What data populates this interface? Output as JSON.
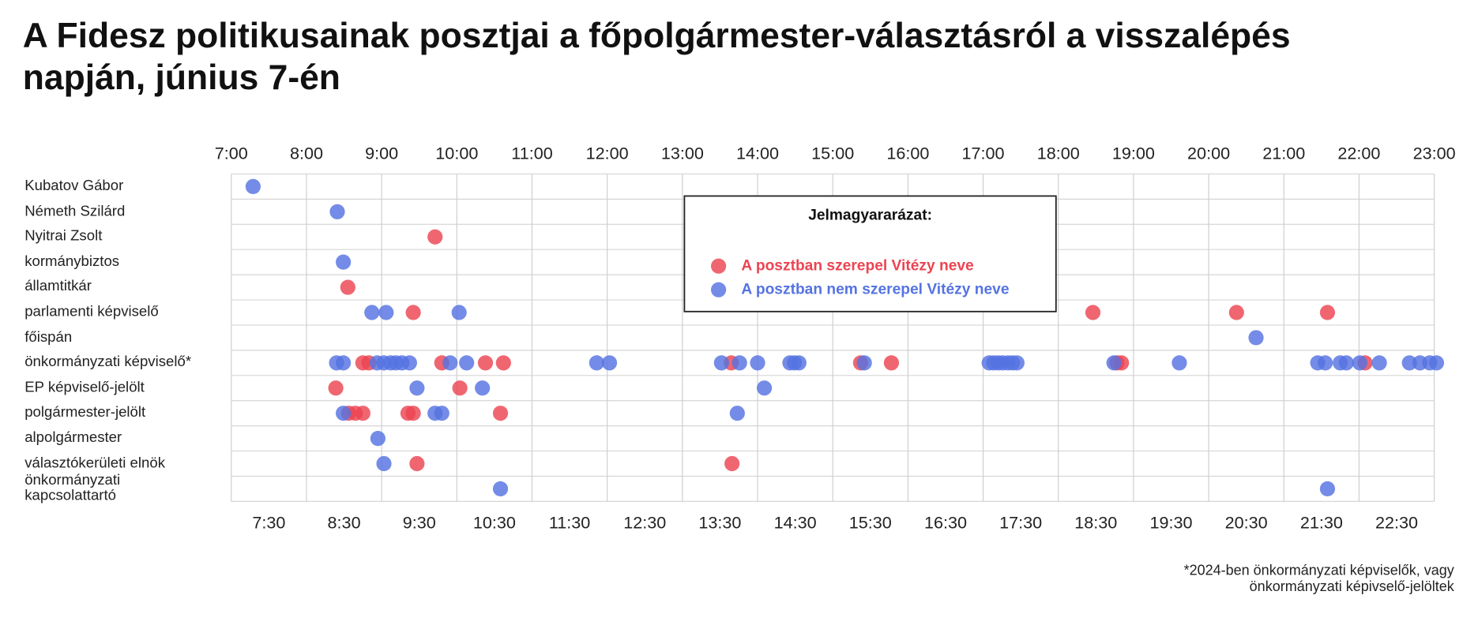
{
  "chart_data": {
    "type": "scatter",
    "title": "A Fidesz politikusainak posztjai a főpolgármester-választásról a visszalépés napján, június 7-én",
    "categories": [
      "Kubatov Gábor",
      "Németh Szilárd",
      "Nyitrai Zsolt",
      "kormánybiztos",
      "államtitkár",
      "parlamenti képviselő",
      "főispán",
      "önkormányzati képviselő*",
      "EP képviselő-jelölt",
      "polgármester-jelölt",
      "alpolgármester",
      "választókerületi elnök",
      "önkormányzati\nkapcsolattartó"
    ],
    "xlim": [
      7,
      23
    ],
    "xticks": [
      {
        "value": 7,
        "label": "7:00"
      },
      {
        "value": 8,
        "label": "8:00"
      },
      {
        "value": 9,
        "label": "9:00"
      },
      {
        "value": 10,
        "label": "10:00"
      },
      {
        "value": 11,
        "label": "11:00"
      },
      {
        "value": 12,
        "label": "12:00"
      },
      {
        "value": 13,
        "label": "13:00"
      },
      {
        "value": 14,
        "label": "14:00"
      },
      {
        "value": 15,
        "label": "15:00"
      },
      {
        "value": 16,
        "label": "16:00"
      },
      {
        "value": 17,
        "label": "17:00"
      },
      {
        "value": 18,
        "label": "18:00"
      },
      {
        "value": 19,
        "label": "19:00"
      },
      {
        "value": 20,
        "label": "20:00"
      },
      {
        "value": 21,
        "label": "21:00"
      },
      {
        "value": 22,
        "label": "22:00"
      },
      {
        "value": 23,
        "label": "23:00"
      }
    ],
    "xticks_bottom": [
      {
        "value": 7.5,
        "label": "7:30"
      },
      {
        "value": 8.5,
        "label": "8:30"
      },
      {
        "value": 9.5,
        "label": "9:30"
      },
      {
        "value": 10.5,
        "label": "10:30"
      },
      {
        "value": 11.5,
        "label": "11:30"
      },
      {
        "value": 12.5,
        "label": "12:30"
      },
      {
        "value": 13.5,
        "label": "13:30"
      },
      {
        "value": 14.5,
        "label": "14:30"
      },
      {
        "value": 15.5,
        "label": "15:30"
      },
      {
        "value": 16.5,
        "label": "16:30"
      },
      {
        "value": 17.5,
        "label": "17:30"
      },
      {
        "value": 18.5,
        "label": "18:30"
      },
      {
        "value": 19.5,
        "label": "19:30"
      },
      {
        "value": 20.5,
        "label": "20:30"
      },
      {
        "value": 21.5,
        "label": "21:30"
      },
      {
        "value": 22.5,
        "label": "22:30"
      }
    ],
    "grid": true,
    "legend_title": "Jelmagyararázat:",
    "series": [
      {
        "name": "A posztban szerepel Vitézy neve",
        "color": "#ec4452",
        "x": [
          9.71,
          8.55,
          9.42,
          18.46,
          20.37,
          21.58,
          8.75,
          8.83,
          9.8,
          10.38,
          10.62,
          13.65,
          15.37,
          15.78,
          18.78,
          18.84,
          22.08,
          8.39,
          10.04,
          8.56,
          8.65,
          8.75,
          9.35,
          9.42,
          10.58,
          9.47,
          13.66
        ],
        "y": [
          "Nyitrai Zsolt",
          "államtitkár",
          "parlamenti képviselő",
          "parlamenti képviselő",
          "parlamenti képviselő",
          "parlamenti képviselő",
          "önkormányzati képviselő*",
          "önkormányzati képviselő*",
          "önkormányzati képviselő*",
          "önkormányzati képviselő*",
          "önkormányzati képviselő*",
          "önkormányzati képviselő*",
          "önkormányzati képviselő*",
          "önkormányzati képviselő*",
          "önkormányzati képviselő*",
          "önkormányzati képviselő*",
          "önkormányzati képviselő*",
          "EP képviselő-jelölt",
          "EP képviselő-jelölt",
          "polgármester-jelölt",
          "polgármester-jelölt",
          "polgármester-jelölt",
          "polgármester-jelölt",
          "polgármester-jelölt",
          "polgármester-jelölt",
          "választókerületi elnök",
          "választókerületi elnök"
        ]
      },
      {
        "name": "A posztban nem szerepel Vitézy neve",
        "color": "#5573e2",
        "x": [
          7.29,
          8.41,
          8.49,
          8.87,
          9.06,
          10.03,
          20.63,
          8.4,
          8.49,
          8.94,
          9.03,
          9.12,
          9.19,
          9.27,
          9.37,
          9.91,
          10.13,
          11.86,
          12.03,
          13.52,
          13.76,
          14.0,
          14.43,
          14.49,
          14.55,
          15.42,
          17.08,
          17.14,
          17.2,
          17.26,
          17.33,
          17.39,
          17.45,
          18.74,
          19.61,
          21.45,
          21.55,
          21.75,
          21.83,
          22.01,
          22.27,
          22.67,
          22.81,
          22.94,
          23.03,
          9.47,
          10.34,
          14.09,
          8.49,
          9.71,
          9.8,
          13.73,
          8.95,
          9.03,
          10.58,
          21.58
        ],
        "y": [
          "Kubatov Gábor",
          "Németh Szilárd",
          "kormánybiztos",
          "parlamenti képviselő",
          "parlamenti képviselő",
          "parlamenti képviselő",
          "főispán",
          "önkormányzati képviselő*",
          "önkormányzati képviselő*",
          "önkormányzati képviselő*",
          "önkormányzati képviselő*",
          "önkormányzati képviselő*",
          "önkormányzati képviselő*",
          "önkormányzati képviselő*",
          "önkormányzati képviselő*",
          "önkormányzati képviselő*",
          "önkormányzati képviselő*",
          "önkormányzati képviselő*",
          "önkormányzati képviselő*",
          "önkormányzati képviselő*",
          "önkormányzati képviselő*",
          "önkormányzati képviselő*",
          "önkormányzati képviselő*",
          "önkormányzati képviselő*",
          "önkormányzati képviselő*",
          "önkormányzati képviselő*",
          "önkormányzati képviselő*",
          "önkormányzati képviselő*",
          "önkormányzati képviselő*",
          "önkormányzati képviselő*",
          "önkormányzati képviselő*",
          "önkormányzati képviselő*",
          "önkormányzati képviselő*",
          "önkormányzati képviselő*",
          "önkormányzati képviselő*",
          "önkormányzati képviselő*",
          "önkormányzati képviselő*",
          "önkormányzati képviselő*",
          "önkormányzati képviselő*",
          "önkormányzati képviselő*",
          "önkormányzati képviselő*",
          "önkormányzati képviselő*",
          "önkormányzati képviselő*",
          "önkormányzati képviselő*",
          "önkormányzati képviselő*",
          "EP képviselő-jelölt",
          "EP képviselő-jelölt",
          "EP képviselő-jelölt",
          "polgármester-jelölt",
          "polgármester-jelölt",
          "polgármester-jelölt",
          "polgármester-jelölt",
          "alpolgármester",
          "választókerületi elnök",
          "önkormányzati\nkapcsolattartó",
          "önkormányzati\nkapcsolattartó"
        ]
      }
    ],
    "footnote": "*2024-ben önkormányzati képviselők, vagy\nönkormányzati képivselő-jelöltek"
  }
}
